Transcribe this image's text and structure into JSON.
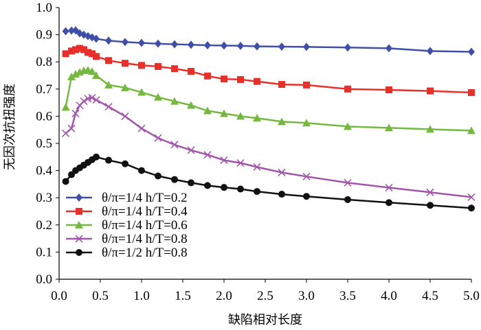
{
  "chart_data": {
    "type": "line",
    "xlabel": "缺陷相对长度",
    "ylabel": "无因次抗扭强度",
    "xlim": [
      0,
      5
    ],
    "ylim": [
      0,
      1
    ],
    "xticks": [
      "0.0",
      "0.5",
      "1.0",
      "1.5",
      "2.0",
      "2.5",
      "3.0",
      "3.5",
      "4.0",
      "4.5",
      "5.0"
    ],
    "yticks": [
      "0.0",
      "0.1",
      "0.2",
      "0.3",
      "0.4",
      "0.5",
      "0.6",
      "0.7",
      "0.8",
      "0.9",
      "1.0"
    ],
    "grid": false,
    "legend_position": "lower-left",
    "series": [
      {
        "name": "θ/π=1/4  h/T=0.2",
        "color": "#3f4fa8",
        "marker": "diamond",
        "x": [
          0.08,
          0.15,
          0.2,
          0.25,
          0.3,
          0.35,
          0.4,
          0.45,
          0.6,
          0.8,
          1.0,
          1.2,
          1.4,
          1.6,
          1.8,
          2.0,
          2.2,
          2.4,
          2.7,
          3.0,
          3.5,
          4.0,
          4.5,
          5.0
        ],
        "values": [
          0.913,
          0.915,
          0.916,
          0.905,
          0.9,
          0.895,
          0.89,
          0.885,
          0.878,
          0.873,
          0.87,
          0.867,
          0.865,
          0.863,
          0.861,
          0.86,
          0.859,
          0.857,
          0.856,
          0.855,
          0.853,
          0.85,
          0.84,
          0.837
        ]
      },
      {
        "name": "θ/π=1/4  h/T=0.4",
        "color": "#e8302a",
        "marker": "square",
        "x": [
          0.08,
          0.15,
          0.2,
          0.25,
          0.3,
          0.35,
          0.4,
          0.45,
          0.6,
          0.8,
          1.0,
          1.2,
          1.4,
          1.6,
          1.8,
          2.0,
          2.2,
          2.4,
          2.7,
          3.0,
          3.5,
          4.0,
          4.5,
          5.0
        ],
        "values": [
          0.83,
          0.84,
          0.845,
          0.85,
          0.845,
          0.835,
          0.83,
          0.82,
          0.805,
          0.795,
          0.787,
          0.783,
          0.775,
          0.765,
          0.748,
          0.737,
          0.735,
          0.728,
          0.717,
          0.715,
          0.7,
          0.697,
          0.693,
          0.687
        ]
      },
      {
        "name": "θ/π=1/4  h/T=0.6",
        "color": "#74b840",
        "marker": "triangle",
        "x": [
          0.08,
          0.15,
          0.2,
          0.25,
          0.3,
          0.35,
          0.4,
          0.45,
          0.6,
          0.8,
          1.0,
          1.2,
          1.4,
          1.6,
          1.8,
          2.0,
          2.2,
          2.4,
          2.7,
          3.0,
          3.5,
          4.0,
          4.5,
          5.0
        ],
        "values": [
          0.633,
          0.745,
          0.755,
          0.762,
          0.768,
          0.77,
          0.765,
          0.75,
          0.715,
          0.705,
          0.688,
          0.67,
          0.655,
          0.64,
          0.62,
          0.61,
          0.6,
          0.593,
          0.58,
          0.575,
          0.562,
          0.557,
          0.552,
          0.547
        ]
      },
      {
        "name": "θ/π=1/4  h/T=0.8",
        "color": "#a155aa",
        "marker": "x",
        "x": [
          0.08,
          0.15,
          0.2,
          0.25,
          0.3,
          0.35,
          0.4,
          0.45,
          0.6,
          0.8,
          1.0,
          1.2,
          1.4,
          1.6,
          1.8,
          2.0,
          2.2,
          2.4,
          2.7,
          3.0,
          3.5,
          4.0,
          4.5,
          5.0
        ],
        "values": [
          0.537,
          0.555,
          0.61,
          0.64,
          0.655,
          0.665,
          0.668,
          0.66,
          0.635,
          0.6,
          0.555,
          0.52,
          0.495,
          0.475,
          0.458,
          0.438,
          0.428,
          0.413,
          0.393,
          0.378,
          0.355,
          0.337,
          0.32,
          0.302
        ]
      },
      {
        "name": "θ/π=1/2  h/T=0.8",
        "color": "#111111",
        "marker": "circle",
        "x": [
          0.08,
          0.15,
          0.2,
          0.25,
          0.3,
          0.35,
          0.4,
          0.45,
          0.6,
          0.8,
          1.0,
          1.2,
          1.4,
          1.6,
          1.8,
          2.0,
          2.2,
          2.4,
          2.7,
          3.0,
          3.5,
          4.0,
          4.5,
          5.0
        ],
        "values": [
          0.36,
          0.385,
          0.4,
          0.41,
          0.42,
          0.43,
          0.44,
          0.45,
          0.438,
          0.425,
          0.4,
          0.38,
          0.367,
          0.355,
          0.345,
          0.338,
          0.332,
          0.323,
          0.313,
          0.305,
          0.293,
          0.282,
          0.272,
          0.262
        ]
      }
    ]
  }
}
